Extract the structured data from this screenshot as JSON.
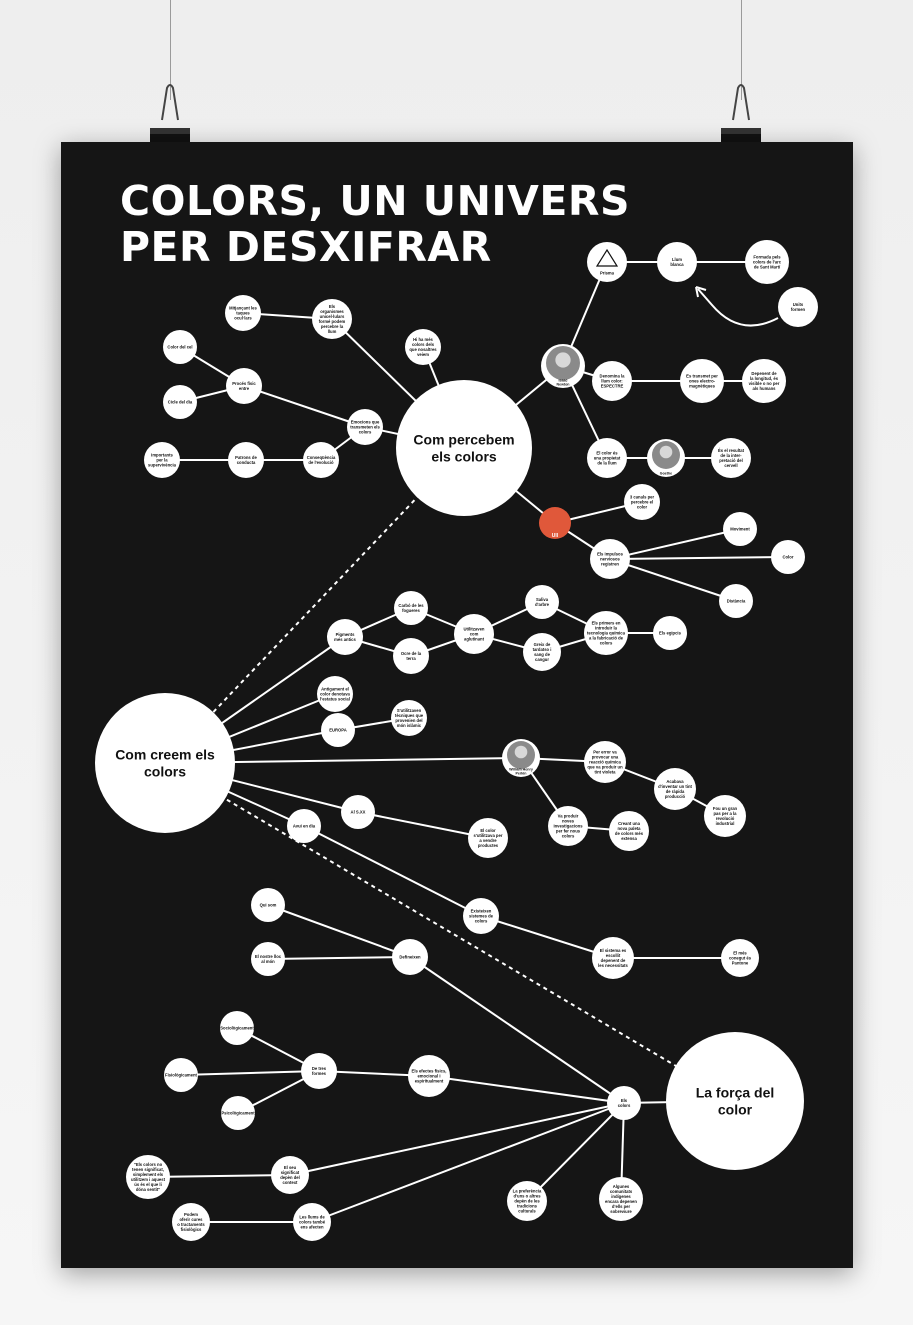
{
  "title": {
    "line1": "COLORS, UN UNIVERS",
    "line2": "PER DESXIFRAR"
  },
  "colors": {
    "poster": "#151515",
    "node": "#ffffff",
    "line": "#ffffff",
    "eye": "#e0583a"
  },
  "hubs": {
    "percebem": "Com percebem\nels colors",
    "creem": "Com creem els\ncolors",
    "forca": "La força del\ncolor"
  },
  "nodes": {
    "prisma": "Prisma",
    "llum_blanca": "Llum\nblanca",
    "formada": "Formada pels\ncolors de l'arc\nde Sant Martí",
    "units": "Units\nformen",
    "newton": "Isaac\nNewton",
    "denomina": "Denomina la\nllum color:\nESPECTRE",
    "transmet": "Es transmet per\nones electro-\nmagnètiques",
    "depenent": "Depenent de\nla longitud, és\nvisible o no per\nals humans",
    "color_propietat": "El color és\nuna propietat\nde la llum",
    "goethe": "Goethe",
    "resultat": "És el resultat\nde la inter-\npretació del\ncervell",
    "ull": "Ull",
    "canals": "3 canals per\npercebre el\ncolor",
    "impulsos": "Els impulsos\nnerviosos\nregistren",
    "moviment": "Moviment",
    "color": "Color",
    "distancia": "Distància",
    "organismes": "Els\norganismes\nunicel·lulars\nformé podem\npercebre la\nllum",
    "mitjancant": "Mitjançant les\ntaques\nocul·lars",
    "hi_ha_mes": "Hi ha més\ncolors dels\nque nosaltres\nveiem",
    "color_cel": "Color del cel",
    "proces": "Procés físic\nentre",
    "cicle": "Cicle del dia",
    "emocions": "Emocions que\ntransmeten els\ncolors",
    "importants": "Importants\nper la\nsupervivència",
    "patrons": "Patrons de\nconducta",
    "consequencia": "Conseqüència\nde l'evolució",
    "pigments": "Pigments\nmés antics",
    "carbo": "Carbó de les\nfogueres",
    "ocre": "Ocre de la\nterra",
    "utilitzaven": "Utilitzaven\ncom\naglutinant",
    "saliva": "Saliva\nd'arbre",
    "greix": "Greix de\ntardatso i\nsang de\ncangur",
    "primers": "Els primers en\nintroduir la\ntecnologia química\na la fabricació de\ncolors",
    "egipcis": "Els egipcis",
    "antigament": "Antigament el\ncolor denotava\nl'estatus social",
    "europa": "EUROPA",
    "sutilitzaven": "S'utilitzaven\ntècniques que\nprovenien del\nmón islàmic",
    "perkin": "William Henry\nPerkin",
    "per_error": "Per error va\nprovocar una\nreacció química\nque va produir un\ntint violeta",
    "acabava": "Acabava\nd'inventar un tint\nde ràpida\nproducció",
    "fou_un_gran": "Fou un gran\npas per a la\nrevolució\nindustrial",
    "va_produir": "Va produir\nnoves\ninvestigacions\nper fer nous\ncolors",
    "creant": "Creant una\nnova paleta\nde colors més\nextensa",
    "segle_xx": "Al S.XX",
    "avui_en_dia": "Avui en dia",
    "color_utilitzava": "El color\ns'utilitzava per\na vendre\nproductes",
    "existeixen": "Existeixen\nsistemes de\ncolors",
    "sistema": "El sistema es\nescollit\ndepenent de\nles necessitats",
    "mes_conegut": "El més\nconegut és\nPantone",
    "qui_som": "Qui som",
    "nostre_lloc": "El nostre lloc\nal món",
    "defineixen": "Defineixen",
    "sociologicament": "Sociològicament",
    "de_tres": "De tres\nformes",
    "fisiologicament": "Fisiològicament",
    "psicologicament": "Psicològicament",
    "efectes": "Els efectes físics,\nemocional i\nespiritualment",
    "els_colors": "Els\ncolors",
    "cita": "\"Els colors no\ntenen significat,\nsimplement els\nutilitzem i aquest\nús és el que li\ndóna sentit\"",
    "seu_significat": "El seu\nsignificat\ndepèn del\ncontext",
    "podem_oferir": "Podem\noferir cures\no tractaments\nfisiològics",
    "llums": "Les llums de\ncolors també\nens afecten",
    "preferencia": "La preferència\nd'uns o altres\ndepèn de les\ntradicions\nculturals",
    "algunes": "Algunes\ncomunitats\nindígenes\nencara depenen\nd'ells per\nsobreviure"
  }
}
